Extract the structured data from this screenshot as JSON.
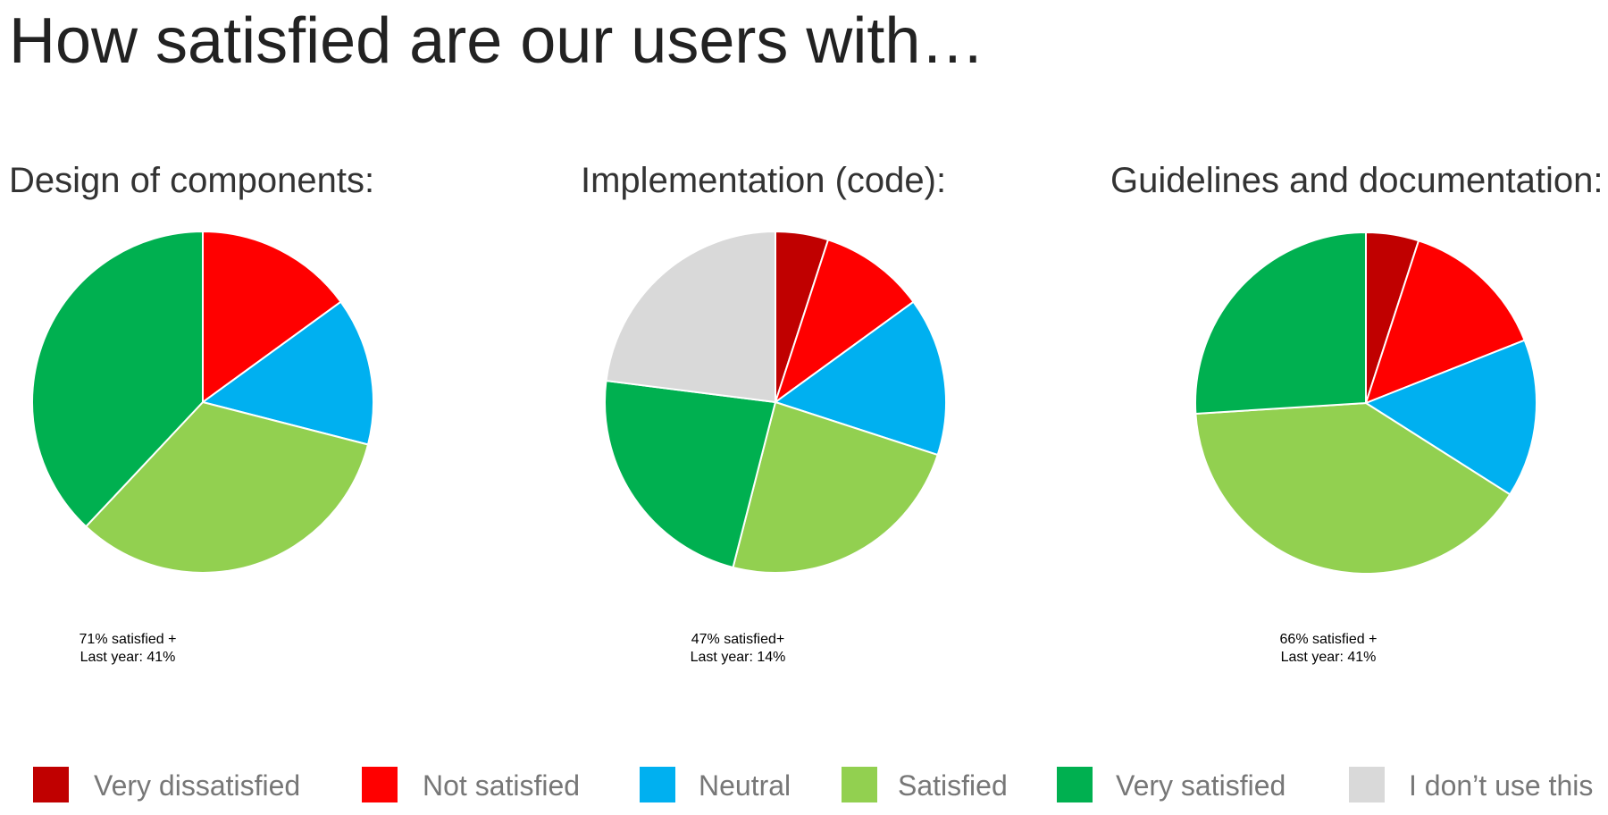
{
  "title": "How satisfied are our users with…",
  "chart_data": [
    {
      "type": "pie",
      "title": "Design of components:",
      "categories": [
        "Very dissatisfied",
        "Not satisfied",
        "Neutral",
        "Satisfied",
        "Very satisfied",
        "I don’t use this"
      ],
      "colors": [
        "#c00000",
        "#ff0000",
        "#00b0f0",
        "#92d050",
        "#00b050",
        "#d9d9d9"
      ],
      "values": [
        0,
        15,
        14,
        33,
        38,
        0
      ],
      "annotations": [
        "71% satisfied +",
        "Last year: 41%"
      ]
    },
    {
      "type": "pie",
      "title": "Implementation (code):",
      "categories": [
        "Very dissatisfied",
        "Not satisfied",
        "Neutral",
        "Satisfied",
        "Very satisfied",
        "I don’t use this"
      ],
      "colors": [
        "#c00000",
        "#ff0000",
        "#00b0f0",
        "#92d050",
        "#00b050",
        "#d9d9d9"
      ],
      "values": [
        5,
        10,
        15,
        24,
        23,
        23
      ],
      "annotations": [
        "47% satisfied+",
        "Last year: 14%"
      ]
    },
    {
      "type": "pie",
      "title": "Guidelines and documentation:",
      "categories": [
        "Very dissatisfied",
        "Not satisfied",
        "Neutral",
        "Satisfied",
        "Very satisfied",
        "I don’t use this"
      ],
      "colors": [
        "#c00000",
        "#ff0000",
        "#00b0f0",
        "#92d050",
        "#00b050",
        "#d9d9d9"
      ],
      "values": [
        5,
        14,
        15,
        40,
        26,
        0
      ],
      "annotations": [
        "66% satisfied +",
        "Last year: 41%"
      ]
    }
  ]
}
